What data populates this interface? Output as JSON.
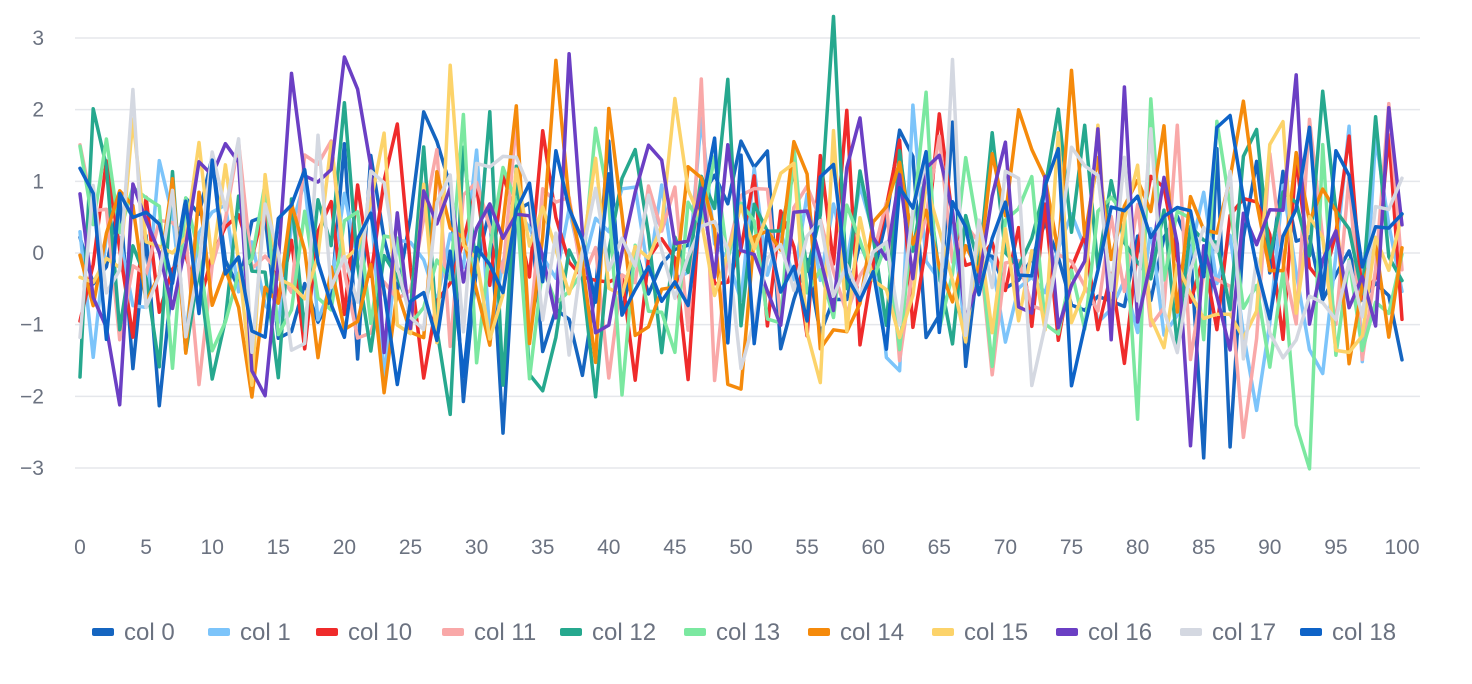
{
  "chart_data": {
    "type": "line",
    "title": "",
    "xlabel": "",
    "ylabel": "",
    "xlim": [
      0,
      100
    ],
    "ylim": [
      -3.4,
      3.4
    ],
    "x_ticks": [
      0,
      5,
      10,
      15,
      20,
      25,
      30,
      35,
      40,
      45,
      50,
      55,
      60,
      65,
      70,
      75,
      80,
      85,
      90,
      95,
      100
    ],
    "y_ticks": [
      3,
      2,
      1,
      0,
      -1,
      -2,
      -3
    ],
    "y_tick_labels": [
      "3",
      "2",
      "1",
      "0",
      "−1",
      "−2",
      "−3"
    ],
    "grid": "horizontal",
    "legend_position": "bottom",
    "series": [
      {
        "name": "col 0",
        "color": "#1565c0"
      },
      {
        "name": "col 1",
        "color": "#7cc4fa"
      },
      {
        "name": "col 10",
        "color": "#ef2b2b"
      },
      {
        "name": "col 11",
        "color": "#f9a8a8"
      },
      {
        "name": "col 12",
        "color": "#26a88e"
      },
      {
        "name": "col 13",
        "color": "#7be8a0"
      },
      {
        "name": "col 14",
        "color": "#f58a0b"
      },
      {
        "name": "col 15",
        "color": "#fcd36a"
      },
      {
        "name": "col 16",
        "color": "#6b3fc4"
      },
      {
        "name": "col 17",
        "color": "#d4d8e1"
      },
      {
        "name": "col 18",
        "color": "#0e63c7"
      }
    ]
  }
}
